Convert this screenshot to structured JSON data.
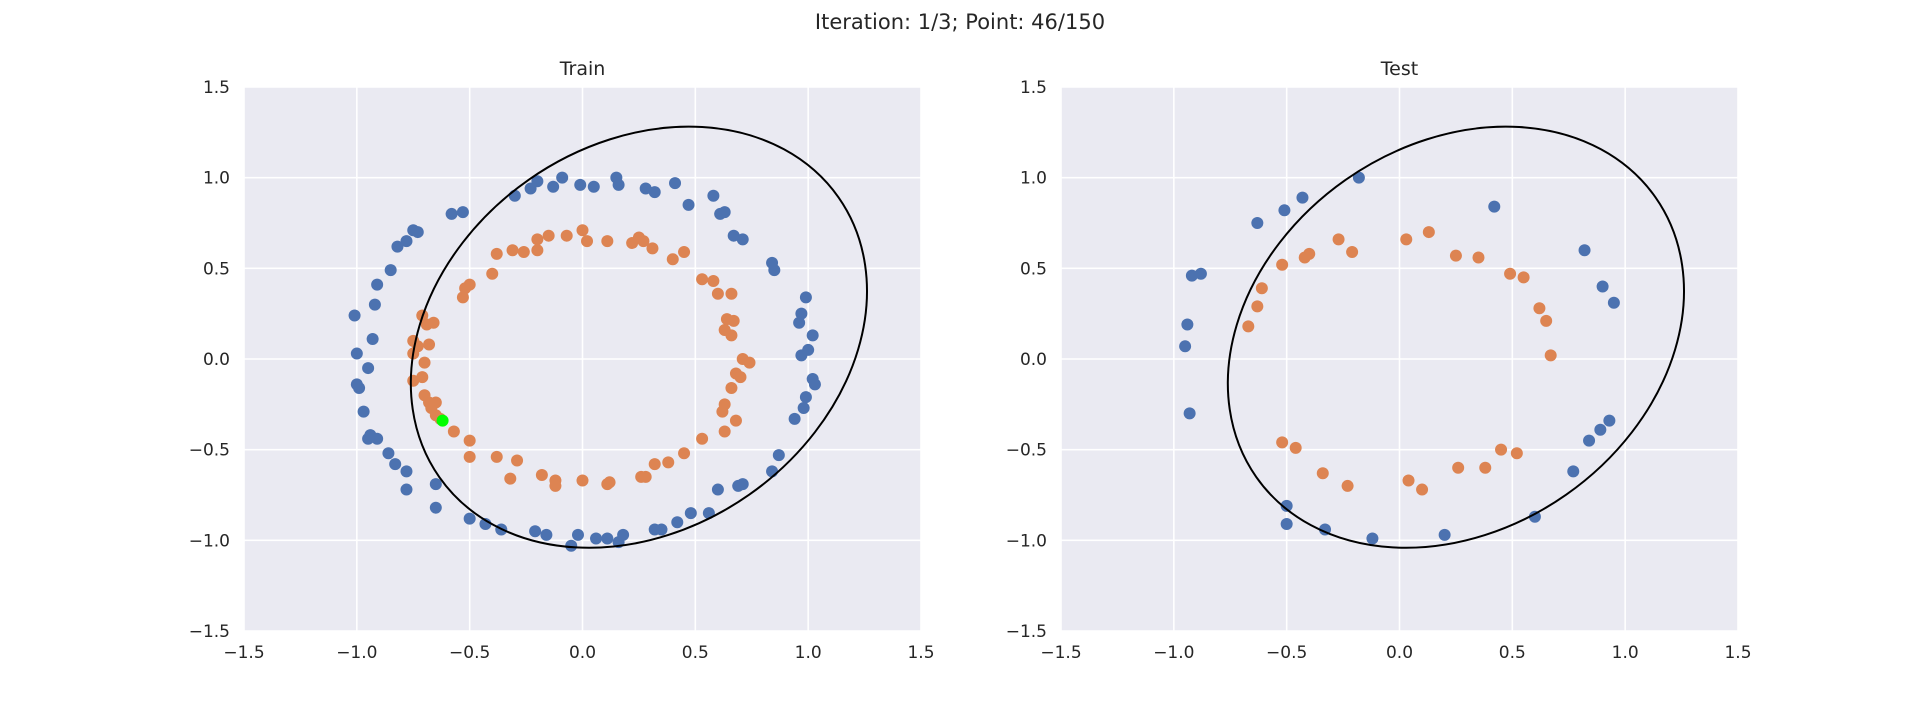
{
  "suptitle": "Iteration: 1/3; Point: 46/150",
  "colors": {
    "background": "#eaeaf2",
    "grid": "#ffffff",
    "class0": "#4c72b0",
    "class1": "#dd8452",
    "highlight": "#00ff00",
    "boundary": "#000000"
  },
  "chart_data": [
    {
      "type": "scatter",
      "title": "Train",
      "xlim": [
        -1.5,
        1.5
      ],
      "ylim": [
        -1.5,
        1.5
      ],
      "xticks": [
        -1.5,
        -1.0,
        -0.5,
        0.0,
        0.5,
        1.0,
        1.5
      ],
      "yticks": [
        -1.5,
        -1.0,
        -0.5,
        0.0,
        0.5,
        1.0,
        1.5
      ],
      "xtick_labels": [
        "−1.5",
        "−1.0",
        "−0.5",
        "0.0",
        "0.5",
        "1.0",
        "1.5"
      ],
      "ytick_labels": [
        "−1.5",
        "−1.0",
        "−0.5",
        "0.0",
        "0.5",
        "1.0",
        "1.5"
      ],
      "grid": true,
      "boundary_ellipse": {
        "center": [
          0.25,
          0.12
        ],
        "rx": 1.08,
        "ry": 1.06,
        "rotation_deg": -35
      },
      "series": [
        {
          "color_key": "class0",
          "points": [
            [
              -0.09,
              1.0
            ],
            [
              -0.2,
              0.98
            ],
            [
              -0.13,
              0.95
            ],
            [
              -0.23,
              0.94
            ],
            [
              -0.3,
              0.9
            ],
            [
              -0.01,
              0.96
            ],
            [
              0.05,
              0.95
            ],
            [
              0.15,
              1.0
            ],
            [
              0.16,
              0.96
            ],
            [
              0.28,
              0.94
            ],
            [
              0.32,
              0.92
            ],
            [
              0.41,
              0.97
            ],
            [
              0.47,
              0.85
            ],
            [
              0.58,
              0.9
            ],
            [
              0.61,
              0.8
            ],
            [
              0.63,
              0.81
            ],
            [
              0.67,
              0.68
            ],
            [
              0.71,
              0.66
            ],
            [
              0.84,
              0.53
            ],
            [
              0.85,
              0.49
            ],
            [
              0.99,
              0.34
            ],
            [
              0.97,
              0.25
            ],
            [
              0.96,
              0.2
            ],
            [
              1.02,
              0.13
            ],
            [
              1.0,
              0.05
            ],
            [
              0.97,
              0.02
            ],
            [
              1.02,
              -0.11
            ],
            [
              1.03,
              -0.14
            ],
            [
              0.99,
              -0.21
            ],
            [
              0.98,
              -0.27
            ],
            [
              0.94,
              -0.33
            ],
            [
              0.87,
              -0.53
            ],
            [
              0.84,
              -0.62
            ],
            [
              0.71,
              -0.69
            ],
            [
              0.69,
              -0.7
            ],
            [
              0.6,
              -0.72
            ],
            [
              0.56,
              -0.85
            ],
            [
              0.48,
              -0.85
            ],
            [
              0.42,
              -0.9
            ],
            [
              0.35,
              -0.94
            ],
            [
              0.32,
              -0.94
            ],
            [
              0.18,
              -0.97
            ],
            [
              0.16,
              -1.01
            ],
            [
              0.11,
              -0.99
            ],
            [
              0.06,
              -0.99
            ],
            [
              -0.02,
              -0.97
            ],
            [
              -0.05,
              -1.03
            ],
            [
              -0.16,
              -0.97
            ],
            [
              -0.21,
              -0.95
            ],
            [
              -0.36,
              -0.94
            ],
            [
              -0.43,
              -0.91
            ],
            [
              -0.5,
              -0.88
            ],
            [
              -0.65,
              -0.82
            ],
            [
              -0.65,
              -0.69
            ],
            [
              -0.78,
              -0.72
            ],
            [
              -0.78,
              -0.62
            ],
            [
              -0.83,
              -0.58
            ],
            [
              -0.86,
              -0.52
            ],
            [
              -0.91,
              -0.44
            ],
            [
              -0.94,
              -0.42
            ],
            [
              -0.95,
              -0.44
            ],
            [
              -0.97,
              -0.29
            ],
            [
              -0.99,
              -0.16
            ],
            [
              -1.0,
              -0.14
            ],
            [
              -0.95,
              -0.05
            ],
            [
              -1.0,
              0.03
            ],
            [
              -0.93,
              0.11
            ],
            [
              -1.01,
              0.24
            ],
            [
              -0.92,
              0.3
            ],
            [
              -0.91,
              0.41
            ],
            [
              -0.85,
              0.49
            ],
            [
              -0.82,
              0.62
            ],
            [
              -0.78,
              0.65
            ],
            [
              -0.75,
              0.71
            ],
            [
              -0.73,
              0.7
            ],
            [
              -0.58,
              0.8
            ],
            [
              -0.53,
              0.81
            ]
          ]
        },
        {
          "color_key": "class1",
          "points": [
            [
              -0.2,
              0.66
            ],
            [
              -0.15,
              0.68
            ],
            [
              -0.07,
              0.68
            ],
            [
              0.0,
              0.71
            ],
            [
              0.02,
              0.65
            ],
            [
              0.11,
              0.65
            ],
            [
              0.22,
              0.64
            ],
            [
              0.25,
              0.67
            ],
            [
              0.27,
              0.65
            ],
            [
              0.31,
              0.61
            ],
            [
              0.4,
              0.55
            ],
            [
              0.45,
              0.59
            ],
            [
              0.53,
              0.44
            ],
            [
              0.58,
              0.43
            ],
            [
              0.6,
              0.36
            ],
            [
              0.66,
              0.36
            ],
            [
              0.64,
              0.22
            ],
            [
              0.67,
              0.21
            ],
            [
              0.63,
              0.16
            ],
            [
              0.66,
              0.13
            ],
            [
              0.71,
              0.0
            ],
            [
              0.74,
              -0.02
            ],
            [
              0.68,
              -0.08
            ],
            [
              0.7,
              -0.1
            ],
            [
              0.66,
              -0.16
            ],
            [
              0.63,
              -0.25
            ],
            [
              0.62,
              -0.29
            ],
            [
              0.68,
              -0.34
            ],
            [
              0.63,
              -0.4
            ],
            [
              0.53,
              -0.44
            ],
            [
              0.45,
              -0.52
            ],
            [
              0.38,
              -0.57
            ],
            [
              0.32,
              -0.58
            ],
            [
              0.26,
              -0.65
            ],
            [
              0.28,
              -0.65
            ],
            [
              0.12,
              -0.68
            ],
            [
              0.11,
              -0.69
            ],
            [
              0.0,
              -0.67
            ],
            [
              -0.12,
              -0.67
            ],
            [
              -0.12,
              -0.7
            ],
            [
              -0.18,
              -0.64
            ],
            [
              -0.32,
              -0.66
            ],
            [
              -0.29,
              -0.56
            ],
            [
              -0.38,
              -0.54
            ],
            [
              -0.5,
              -0.54
            ],
            [
              -0.5,
              -0.45
            ],
            [
              -0.57,
              -0.4
            ],
            [
              -0.63,
              -0.33
            ],
            [
              -0.65,
              -0.31
            ],
            [
              -0.67,
              -0.27
            ],
            [
              -0.65,
              -0.24
            ],
            [
              -0.68,
              -0.24
            ],
            [
              -0.7,
              -0.2
            ],
            [
              -0.71,
              -0.1
            ],
            [
              -0.75,
              -0.12
            ],
            [
              -0.7,
              -0.02
            ],
            [
              -0.75,
              0.03
            ],
            [
              -0.73,
              0.07
            ],
            [
              -0.75,
              0.1
            ],
            [
              -0.68,
              0.08
            ],
            [
              -0.69,
              0.19
            ],
            [
              -0.66,
              0.2
            ],
            [
              -0.71,
              0.24
            ],
            [
              -0.53,
              0.34
            ],
            [
              -0.52,
              0.39
            ],
            [
              -0.5,
              0.41
            ],
            [
              -0.4,
              0.47
            ],
            [
              -0.38,
              0.58
            ],
            [
              -0.31,
              0.6
            ],
            [
              -0.26,
              0.59
            ],
            [
              -0.2,
              0.6
            ]
          ]
        },
        {
          "color_key": "highlight",
          "points": [
            [
              -0.62,
              -0.34
            ]
          ]
        }
      ]
    },
    {
      "type": "scatter",
      "title": "Test",
      "xlim": [
        -1.5,
        1.5
      ],
      "ylim": [
        -1.5,
        1.5
      ],
      "xticks": [
        -1.5,
        -1.0,
        -0.5,
        0.0,
        0.5,
        1.0,
        1.5
      ],
      "yticks": [
        -1.5,
        -1.0,
        -0.5,
        0.0,
        0.5,
        1.0,
        1.5
      ],
      "xtick_labels": [
        "−1.5",
        "−1.0",
        "−0.5",
        "0.0",
        "0.5",
        "1.0",
        "1.5"
      ],
      "ytick_labels": [
        "−1.5",
        "−1.0",
        "−0.5",
        "0.0",
        "0.5",
        "1.0",
        "1.5"
      ],
      "grid": true,
      "boundary_ellipse": {
        "center": [
          0.25,
          0.12
        ],
        "rx": 1.08,
        "ry": 1.06,
        "rotation_deg": -35
      },
      "series": [
        {
          "color_key": "class0",
          "points": [
            [
              -0.18,
              1.0
            ],
            [
              -0.43,
              0.89
            ],
            [
              -0.51,
              0.82
            ],
            [
              -0.63,
              0.75
            ],
            [
              0.42,
              0.84
            ],
            [
              -0.88,
              0.47
            ],
            [
              -0.92,
              0.46
            ],
            [
              -0.94,
              0.19
            ],
            [
              -0.95,
              0.07
            ],
            [
              0.82,
              0.6
            ],
            [
              0.9,
              0.4
            ],
            [
              0.95,
              0.31
            ],
            [
              -0.93,
              -0.3
            ],
            [
              0.93,
              -0.34
            ],
            [
              0.89,
              -0.39
            ],
            [
              0.84,
              -0.45
            ],
            [
              0.77,
              -0.62
            ],
            [
              0.6,
              -0.87
            ],
            [
              0.2,
              -0.97
            ],
            [
              -0.12,
              -0.99
            ],
            [
              -0.33,
              -0.94
            ],
            [
              -0.5,
              -0.91
            ],
            [
              -0.5,
              -0.81
            ]
          ]
        },
        {
          "color_key": "class1",
          "points": [
            [
              -0.27,
              0.66
            ],
            [
              -0.4,
              0.58
            ],
            [
              -0.42,
              0.56
            ],
            [
              -0.21,
              0.59
            ],
            [
              0.03,
              0.66
            ],
            [
              0.13,
              0.7
            ],
            [
              0.25,
              0.57
            ],
            [
              0.35,
              0.56
            ],
            [
              0.49,
              0.47
            ],
            [
              0.55,
              0.45
            ],
            [
              0.62,
              0.28
            ],
            [
              0.65,
              0.21
            ],
            [
              0.67,
              0.02
            ],
            [
              -0.52,
              0.52
            ],
            [
              -0.61,
              0.39
            ],
            [
              -0.63,
              0.29
            ],
            [
              -0.67,
              0.18
            ],
            [
              0.52,
              -0.52
            ],
            [
              0.45,
              -0.5
            ],
            [
              0.38,
              -0.6
            ],
            [
              0.26,
              -0.6
            ],
            [
              0.1,
              -0.72
            ],
            [
              0.04,
              -0.67
            ],
            [
              -0.23,
              -0.7
            ],
            [
              -0.34,
              -0.63
            ],
            [
              -0.46,
              -0.49
            ],
            [
              -0.52,
              -0.46
            ]
          ]
        }
      ]
    }
  ]
}
